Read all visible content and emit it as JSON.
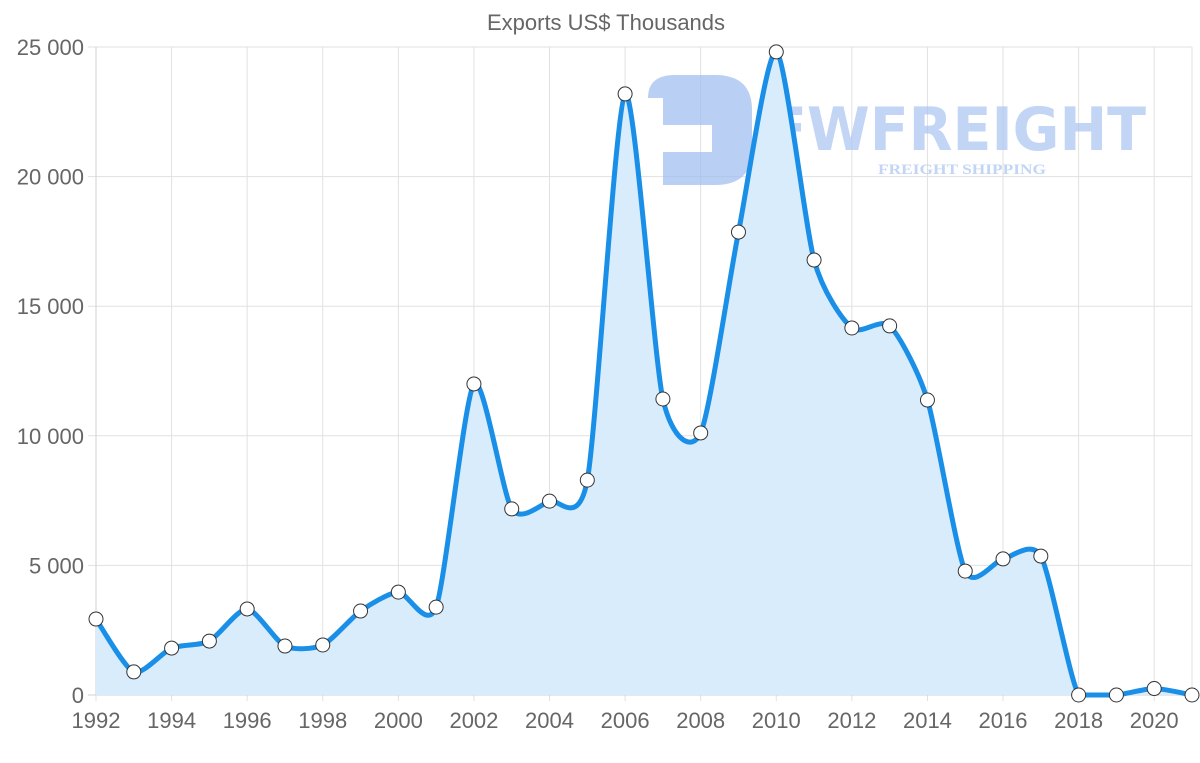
{
  "chart_data": {
    "type": "area",
    "title": "Exports US$ Thousands",
    "xlabel": "",
    "ylabel": "",
    "categories": [
      "1992",
      "1993",
      "1994",
      "1995",
      "1996",
      "1997",
      "1998",
      "1999",
      "2000",
      "2001",
      "2002",
      "2003",
      "2004",
      "2005",
      "2006",
      "2007",
      "2008",
      "2009",
      "2010",
      "2011",
      "2012",
      "2013",
      "2014",
      "2015",
      "2016",
      "2017",
      "2018",
      "2019",
      "2020",
      "2021"
    ],
    "series": [
      {
        "name": "Exports US$ Thousands",
        "color": "#1a8fe8",
        "fill": "#d9ecfc",
        "values": [
          2930,
          890,
          1810,
          2080,
          3320,
          1890,
          1930,
          3240,
          3970,
          3390,
          12000,
          7180,
          7480,
          8290,
          23190,
          11420,
          10110,
          17860,
          24810,
          16780,
          14160,
          14240,
          11380,
          4780,
          5250,
          5360,
          0,
          0,
          250,
          0
        ]
      }
    ],
    "ylim": [
      0,
      25000
    ],
    "y_ticks": [
      "0",
      "5 000",
      "10 000",
      "15 000",
      "20 000",
      "25 000"
    ],
    "y_tick_values": [
      0,
      5000,
      10000,
      15000,
      20000,
      25000
    ],
    "x_tick_labels": [
      "1992",
      "1994",
      "1996",
      "1998",
      "2000",
      "2002",
      "2004",
      "2006",
      "2008",
      "2010",
      "2012",
      "2014",
      "2016",
      "2018",
      "2020"
    ],
    "grid": true,
    "legend": "none"
  },
  "watermark": {
    "brand": "FWFREIGHT",
    "tagline": "FREIGHT SHIPPING",
    "color": "#8fb3ee"
  }
}
